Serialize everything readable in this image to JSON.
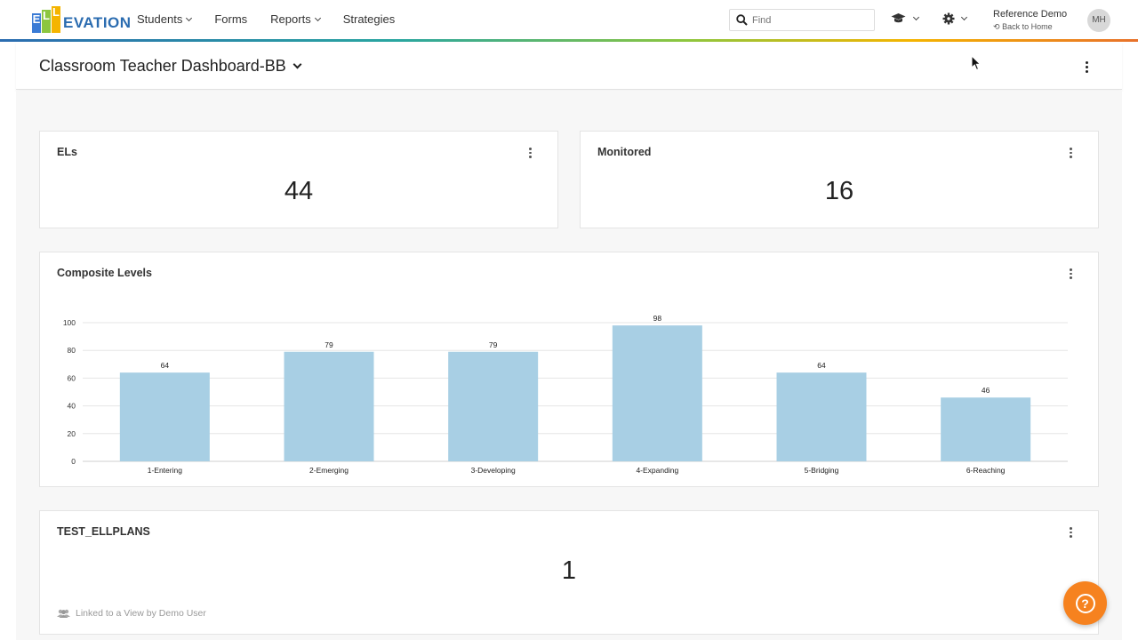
{
  "brand": {
    "logo_text": "ELLEVATION",
    "logo_letters": [
      "E",
      "L",
      "L"
    ],
    "logo_word": "EVATION"
  },
  "nav": {
    "items": [
      {
        "label": "Students",
        "has_dropdown": true
      },
      {
        "label": "Forms",
        "has_dropdown": false
      },
      {
        "label": "Reports",
        "has_dropdown": true
      },
      {
        "label": "Strategies",
        "has_dropdown": false
      }
    ],
    "search_placeholder": "Find",
    "icons": [
      "search-icon",
      "graduation-cap-icon",
      "gear-icon"
    ],
    "user_name": "Reference Demo",
    "back_label": "Back to Home",
    "avatar_initials": "MH"
  },
  "header": {
    "title": "Classroom Teacher Dashboard-BB"
  },
  "cards": {
    "els": {
      "title": "ELs",
      "value": "44"
    },
    "monitored": {
      "title": "Monitored",
      "value": "16"
    },
    "composite": {
      "title": "Composite Levels"
    },
    "test": {
      "title": "TEST_ELLPLANS",
      "value": "1",
      "linked_label": "Linked to a View by Demo User"
    }
  },
  "colors": {
    "bar": "#a8cfe4",
    "accent": "#f6821f",
    "brand_blue": "#2b6cb0"
  },
  "chart_data": {
    "type": "bar",
    "title": "Composite Levels",
    "categories": [
      "1-Entering",
      "2-Emerging",
      "3-Developing",
      "4-Expanding",
      "5-Bridging",
      "6-Reaching"
    ],
    "values": [
      64,
      79,
      79,
      98,
      64,
      46
    ],
    "yticks": [
      0,
      20,
      40,
      60,
      80,
      100
    ],
    "ylim": [
      0,
      100
    ],
    "grid": true,
    "xlabel": "",
    "ylabel": ""
  }
}
